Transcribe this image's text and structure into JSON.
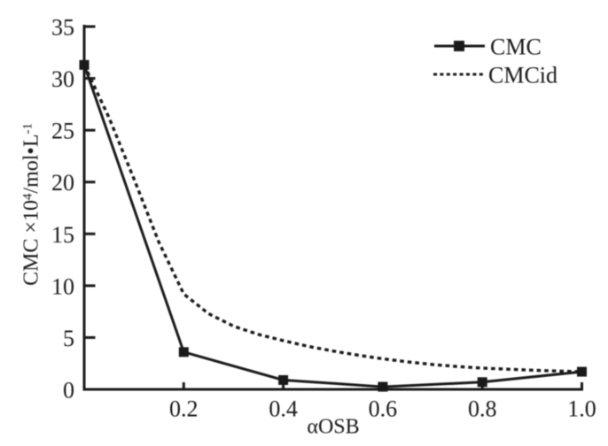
{
  "chart_data": {
    "type": "line",
    "title": "",
    "xlabel": "αOSB",
    "ylabel": "CMC ×10⁴/mol•L⁻¹",
    "ylabel_parts": [
      {
        "text": "CMC ×10",
        "sup": false
      },
      {
        "text": "4",
        "sup": true
      },
      {
        "text": "/mol•L",
        "sup": false
      },
      {
        "text": "-1",
        "sup": true
      }
    ],
    "xlim": [
      0,
      1.0
    ],
    "ylim": [
      0,
      35
    ],
    "x_ticks": [
      0.2,
      0.4,
      0.6,
      0.8,
      1.0
    ],
    "x_tick_labels": [
      "0.2",
      "0.4",
      "0.6",
      "0.8",
      "1.0"
    ],
    "y_ticks": [
      0,
      5,
      10,
      15,
      20,
      25,
      30,
      35
    ],
    "y_tick_labels": [
      "0",
      "5",
      "10",
      "15",
      "20",
      "25",
      "30",
      "35"
    ],
    "grid": false,
    "legend_position": "top-right",
    "series": [
      {
        "name": "CMC",
        "style": "solid line with filled square markers",
        "x": [
          0,
          0.2,
          0.4,
          0.6,
          0.8,
          1.0
        ],
        "y": [
          31.3,
          3.6,
          0.9,
          0.25,
          0.7,
          1.7
        ]
      },
      {
        "name": "CMCid",
        "style": "dashed line",
        "x": [
          0,
          0.05,
          0.1,
          0.15,
          0.2,
          0.25,
          0.3,
          0.35,
          0.4,
          0.45,
          0.5,
          0.55,
          0.6,
          0.65,
          0.7,
          0.75,
          0.8,
          0.85,
          0.9,
          0.95,
          1.0
        ],
        "y": [
          31.3,
          26.2,
          20.3,
          14.2,
          9.2,
          7.3,
          6.1,
          5.3,
          4.7,
          4.15,
          3.7,
          3.3,
          2.95,
          2.65,
          2.4,
          2.2,
          2.05,
          1.95,
          1.85,
          1.77,
          1.7
        ]
      }
    ]
  },
  "colors": {
    "line": "#1a1a1a",
    "text": "#1a1a1a",
    "background": "#ffffff"
  }
}
